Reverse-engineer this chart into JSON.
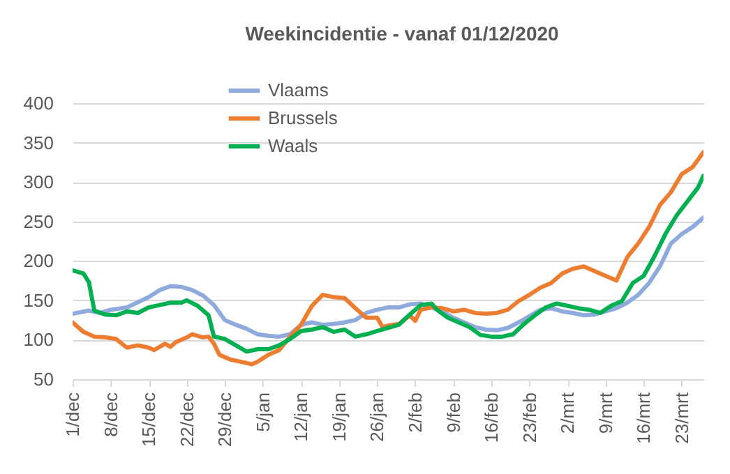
{
  "chart_data": {
    "type": "line",
    "title": "Weekincidentie  - vanaf 01/12/2020",
    "xlim": [
      "2020-12-01",
      "2021-03-27"
    ],
    "xticks": [
      {
        "value": "2020-12-01",
        "label": "1/dec"
      },
      {
        "value": "2020-12-08",
        "label": "8/dec"
      },
      {
        "value": "2020-12-15",
        "label": "15/dec"
      },
      {
        "value": "2020-12-22",
        "label": "22/dec"
      },
      {
        "value": "2020-12-29",
        "label": "29/dec"
      },
      {
        "value": "2021-01-05",
        "label": "5/jan"
      },
      {
        "value": "2021-01-12",
        "label": "12/jan"
      },
      {
        "value": "2021-01-19",
        "label": "19/jan"
      },
      {
        "value": "2021-01-26",
        "label": "26/jan"
      },
      {
        "value": "2021-02-02",
        "label": "2/feb"
      },
      {
        "value": "2021-02-09",
        "label": "9/feb"
      },
      {
        "value": "2021-02-16",
        "label": "16/feb"
      },
      {
        "value": "2021-02-23",
        "label": "23/feb"
      },
      {
        "value": "2021-03-02",
        "label": "2/mrt"
      },
      {
        "value": "2021-03-09",
        "label": "9/mrt"
      },
      {
        "value": "2021-03-16",
        "label": "16/mrt"
      },
      {
        "value": "2021-03-23",
        "label": "23/mrt"
      }
    ],
    "ylim": [
      50,
      400
    ],
    "yticks": [
      50,
      100,
      150,
      200,
      250,
      300,
      350,
      400
    ],
    "grid": "y",
    "legend": "top",
    "line_style": "solid",
    "marker": "none",
    "series": [
      {
        "name": "Vlaams",
        "color": "#8faadc",
        "x": [
          "2020-12-01",
          "2020-12-04",
          "2020-12-06",
          "2020-12-08",
          "2020-12-11",
          "2020-12-15",
          "2020-12-17",
          "2020-12-19",
          "2020-12-21",
          "2020-12-23",
          "2020-12-25",
          "2020-12-27",
          "2020-12-29",
          "2020-12-31",
          "2021-01-02",
          "2021-01-04",
          "2021-01-06",
          "2021-01-08",
          "2021-01-10",
          "2021-01-12",
          "2021-01-14",
          "2021-01-16",
          "2021-01-18",
          "2021-01-20",
          "2021-01-22",
          "2021-01-24",
          "2021-01-26",
          "2021-01-28",
          "2021-01-30",
          "2021-02-01",
          "2021-02-03",
          "2021-02-05",
          "2021-02-07",
          "2021-02-09",
          "2021-02-11",
          "2021-02-13",
          "2021-02-15",
          "2021-02-17",
          "2021-02-19",
          "2021-02-21",
          "2021-02-23",
          "2021-02-25",
          "2021-02-27",
          "2021-03-01",
          "2021-03-03",
          "2021-03-05",
          "2021-03-07",
          "2021-03-09",
          "2021-03-11",
          "2021-03-13",
          "2021-03-15",
          "2021-03-17",
          "2021-03-19",
          "2021-03-21",
          "2021-03-23",
          "2021-03-25",
          "2021-03-27"
        ],
        "values": [
          133,
          137,
          134,
          138,
          141,
          154,
          163,
          168,
          167,
          163,
          156,
          144,
          125,
          119,
          114,
          107,
          105,
          104,
          107,
          119,
          122,
          119,
          120,
          122,
          125,
          134,
          138,
          141,
          141,
          145,
          146,
          141,
          136,
          128,
          122,
          116,
          113,
          112,
          115,
          122,
          130,
          138,
          140,
          136,
          134,
          131,
          132,
          136,
          140,
          147,
          157,
          172,
          193,
          222,
          234,
          243,
          255
        ]
      },
      {
        "name": "Brussels",
        "color": "#ed7d31",
        "x": [
          "2020-12-01",
          "2020-12-03",
          "2020-12-05",
          "2020-12-07",
          "2020-12-09",
          "2020-12-11",
          "2020-12-13",
          "2020-12-15",
          "2020-12-16",
          "2020-12-18",
          "2020-12-19",
          "2020-12-20",
          "2020-12-22",
          "2020-12-23",
          "2020-12-25",
          "2020-12-26",
          "2020-12-27",
          "2020-12-28",
          "2020-12-30",
          "2021-01-01",
          "2021-01-03",
          "2021-01-04",
          "2021-01-06",
          "2021-01-08",
          "2021-01-10",
          "2021-01-12",
          "2021-01-14",
          "2021-01-16",
          "2021-01-18",
          "2021-01-20",
          "2021-01-22",
          "2021-01-24",
          "2021-01-26",
          "2021-01-27",
          "2021-01-28",
          "2021-01-30",
          "2021-02-01",
          "2021-02-02",
          "2021-02-03",
          "2021-02-05",
          "2021-02-07",
          "2021-02-09",
          "2021-02-11",
          "2021-02-13",
          "2021-02-15",
          "2021-02-17",
          "2021-02-19",
          "2021-02-21",
          "2021-02-23",
          "2021-02-25",
          "2021-02-27",
          "2021-03-01",
          "2021-03-03",
          "2021-03-05",
          "2021-03-07",
          "2021-03-09",
          "2021-03-11",
          "2021-03-13",
          "2021-03-15",
          "2021-03-17",
          "2021-03-19",
          "2021-03-21",
          "2021-03-23",
          "2021-03-25",
          "2021-03-27"
        ],
        "values": [
          122,
          110,
          104,
          103,
          101,
          90,
          93,
          90,
          87,
          95,
          91,
          97,
          103,
          107,
          103,
          104,
          95,
          81,
          75,
          72,
          69,
          72,
          81,
          87,
          104,
          119,
          143,
          157,
          154,
          153,
          140,
          128,
          128,
          116,
          118,
          120,
          131,
          124,
          138,
          141,
          140,
          136,
          138,
          134,
          133,
          134,
          138,
          149,
          157,
          166,
          172,
          184,
          190,
          193,
          187,
          181,
          175,
          205,
          222,
          243,
          271,
          287,
          310,
          319,
          338
        ]
      },
      {
        "name": "Waals",
        "color": "#00b050",
        "x": [
          "2020-12-01",
          "2020-12-03",
          "2020-12-04",
          "2020-12-05",
          "2020-12-07",
          "2020-12-09",
          "2020-12-11",
          "2020-12-13",
          "2020-12-15",
          "2020-12-17",
          "2020-12-19",
          "2020-12-21",
          "2020-12-22",
          "2020-12-24",
          "2020-12-26",
          "2020-12-27",
          "2020-12-29",
          "2020-12-31",
          "2021-01-02",
          "2021-01-04",
          "2021-01-06",
          "2021-01-08",
          "2021-01-10",
          "2021-01-12",
          "2021-01-14",
          "2021-01-16",
          "2021-01-18",
          "2021-01-20",
          "2021-01-22",
          "2021-01-24",
          "2021-01-26",
          "2021-01-28",
          "2021-01-30",
          "2021-02-01",
          "2021-02-03",
          "2021-02-05",
          "2021-02-06",
          "2021-02-08",
          "2021-02-10",
          "2021-02-12",
          "2021-02-14",
          "2021-02-16",
          "2021-02-18",
          "2021-02-20",
          "2021-02-22",
          "2021-02-24",
          "2021-02-26",
          "2021-02-28",
          "2021-03-02",
          "2021-03-04",
          "2021-03-06",
          "2021-03-08",
          "2021-03-10",
          "2021-03-12",
          "2021-03-14",
          "2021-03-16",
          "2021-03-18",
          "2021-03-20",
          "2021-03-22",
          "2021-03-24",
          "2021-03-26",
          "2021-03-27"
        ],
        "values": [
          188,
          184,
          173,
          137,
          132,
          131,
          136,
          134,
          141,
          144,
          147,
          147,
          150,
          143,
          131,
          104,
          101,
          93,
          85,
          88,
          88,
          93,
          101,
          111,
          113,
          116,
          110,
          113,
          104,
          107,
          111,
          115,
          119,
          132,
          144,
          146,
          138,
          128,
          122,
          116,
          106,
          104,
          104,
          107,
          120,
          131,
          141,
          146,
          143,
          140,
          138,
          134,
          143,
          149,
          172,
          181,
          206,
          234,
          257,
          275,
          293,
          308
        ]
      }
    ]
  }
}
